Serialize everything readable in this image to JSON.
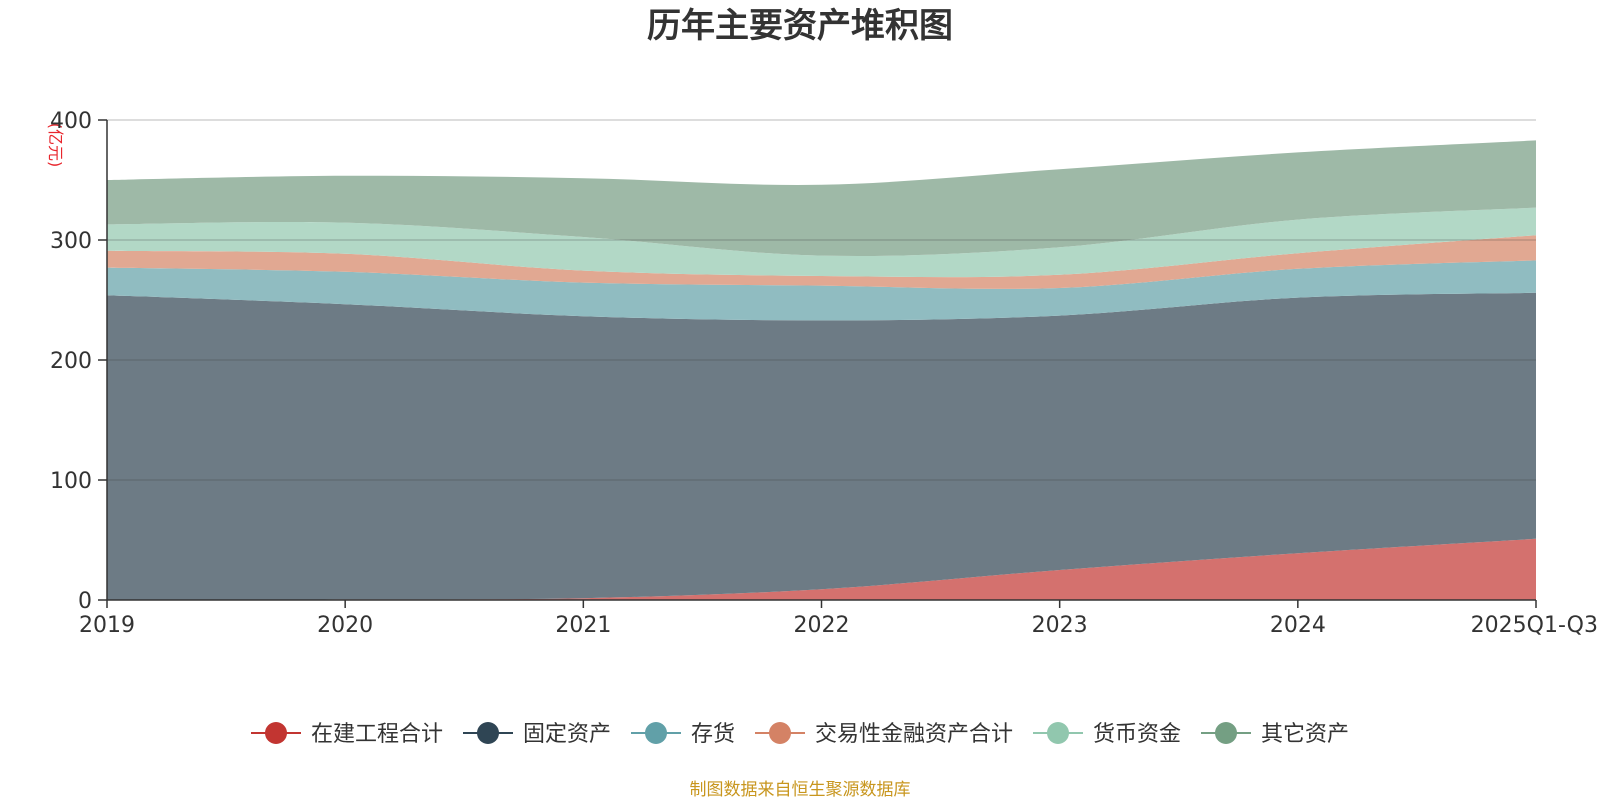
{
  "chart_data": {
    "type": "area",
    "stacked": true,
    "title": "历年主要资产堆积图",
    "ylabel": "(亿元)",
    "xlabel": "",
    "categories": [
      "2019",
      "2020",
      "2021",
      "2022",
      "2023",
      "2024",
      "2025Q1-Q3"
    ],
    "ylim": [
      0,
      400
    ],
    "yticks": [
      0,
      100,
      200,
      300,
      400
    ],
    "grid": true,
    "legend_position": "bottom",
    "series": [
      {
        "name": "在建工程合计",
        "values": [
          0,
          0.5,
          1.5,
          9,
          25,
          39,
          51
        ],
        "color": "#c23531",
        "area_color": "#d4716e"
      },
      {
        "name": "固定资产",
        "values": [
          254,
          246,
          235,
          224,
          212,
          213,
          205
        ],
        "color": "#2f4554",
        "area_color": "#6d7b85"
      },
      {
        "name": "存货",
        "values": [
          23,
          27,
          28,
          29,
          23,
          24,
          27
        ],
        "color": "#61a0a8",
        "area_color": "#90bcc1"
      },
      {
        "name": "交易性金融资产合计",
        "values": [
          14,
          15,
          10,
          8,
          11,
          13,
          21
        ],
        "color": "#d48265",
        "area_color": "#e1a892"
      },
      {
        "name": "货币资金",
        "values": [
          22,
          26,
          28,
          17,
          23,
          28,
          23
        ],
        "color": "#91c7ae",
        "area_color": "#b2d8c6"
      },
      {
        "name": "其它资产",
        "values": [
          37,
          39,
          49,
          59,
          65,
          56,
          56
        ],
        "color": "#749f83",
        "area_color": "#9eb9a7"
      }
    ]
  },
  "footer": {
    "source": "制图数据来自恒生聚源数据库"
  }
}
